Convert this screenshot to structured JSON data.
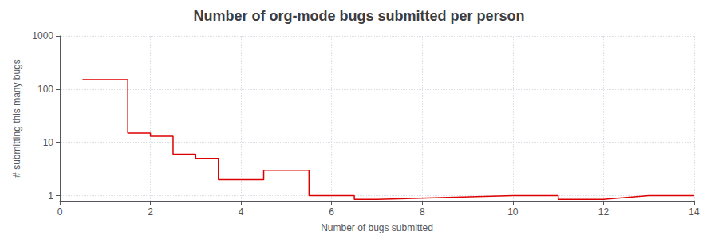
{
  "chart_data": {
    "type": "line",
    "title": "Number of org-mode bugs submitted per person",
    "xlabel": "Number of bugs submitted",
    "ylabel": "# submitting this many bugs",
    "x": [
      0.5,
      1.5,
      1.5,
      2.0,
      2.0,
      2.5,
      2.5,
      3.0,
      3.0,
      3.5,
      3.5,
      4.5,
      4.5,
      5.5,
      5.5,
      6.5,
      6.5,
      7.0,
      10.0,
      11.0,
      11.0,
      12.0,
      13.0,
      14.0
    ],
    "values": [
      150,
      150,
      15,
      15,
      13,
      13,
      6,
      6,
      5,
      5,
      2,
      2,
      3,
      3,
      1,
      1,
      0.85,
      0.85,
      1,
      1,
      0.85,
      0.85,
      1,
      1
    ],
    "color": "#dd0000",
    "xlim": [
      0,
      14
    ],
    "ylim": [
      0.8,
      1000
    ],
    "xticks": [
      0,
      2,
      4,
      6,
      8,
      10,
      12,
      14
    ],
    "yticks": [
      1,
      10,
      100,
      1000
    ],
    "log": "y",
    "grid": true
  }
}
